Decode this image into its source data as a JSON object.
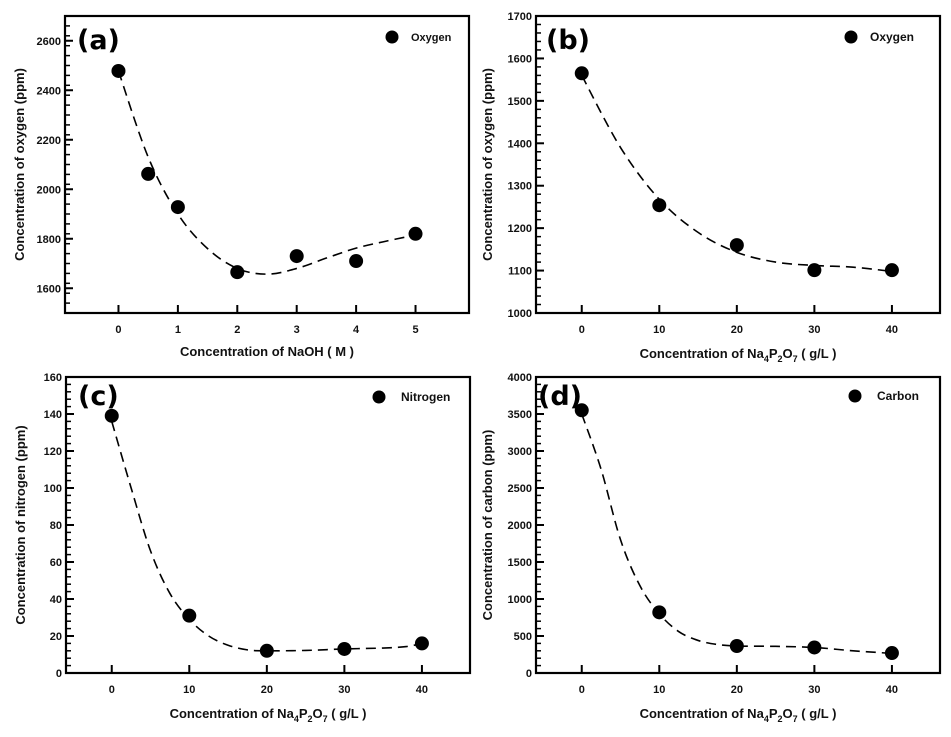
{
  "figure": {
    "background": "#ffffff",
    "marker_color": "#000000",
    "line_color": "#000000"
  },
  "chart_data": [
    {
      "id": "a",
      "type": "scatter",
      "panel_label": "(a)",
      "title": "",
      "xlabel": "Concentration of NaOH ( M )",
      "ylabel": "Concentration of oxygen (ppm)",
      "xlim": [
        -0.9,
        5.9
      ],
      "ylim": [
        1500,
        2700
      ],
      "xticks": [
        0,
        1,
        2,
        3,
        4,
        5
      ],
      "xtick_labels": [
        "0",
        "1",
        "2",
        "3",
        "4",
        "5"
      ],
      "yticks": [
        1600,
        1800,
        2000,
        2200,
        2400,
        2600
      ],
      "ytick_labels": [
        "1600",
        "1800",
        "2000",
        "2200",
        "2400",
        "2600"
      ],
      "yminor_step": 40,
      "grid": false,
      "legend": {
        "position": "top-right",
        "entries": [
          "Oxygen"
        ]
      },
      "series": [
        {
          "name": "Oxygen",
          "x": [
            0,
            0.5,
            1,
            2,
            3,
            4,
            5
          ],
          "y": [
            2478,
            2062,
            1928,
            1665,
            1730,
            1710,
            1820
          ]
        }
      ],
      "fit_curve": {
        "style": "dashed",
        "x": [
          0,
          0.5,
          1,
          1.5,
          2,
          2.5,
          3,
          3.5,
          4,
          4.5,
          5
        ],
        "y": [
          2478,
          2130,
          1900,
          1760,
          1680,
          1657,
          1680,
          1722,
          1762,
          1790,
          1815
        ]
      }
    },
    {
      "id": "b",
      "type": "scatter",
      "panel_label": "(b)",
      "title": "",
      "xlabel": "Concentration of  Na4P2O7  ( g/L )",
      "xlabel_parts": [
        "Concentration of  Na",
        "4",
        "P",
        "2",
        "O",
        "7",
        "   ( g/L )"
      ],
      "ylabel": "Concentration of oxygen  (ppm)",
      "xlim": [
        -5.9,
        46.2
      ],
      "ylim": [
        1000,
        1700
      ],
      "xticks": [
        0,
        10,
        20,
        30,
        40
      ],
      "xtick_labels": [
        "0",
        "10",
        "20",
        "30",
        "40"
      ],
      "yticks": [
        1000,
        1100,
        1200,
        1300,
        1400,
        1500,
        1600,
        1700
      ],
      "ytick_labels": [
        "1000",
        "1100",
        "1200",
        "1300",
        "1400",
        "1500",
        "1600",
        "1700"
      ],
      "yminor_step": 20,
      "grid": false,
      "legend": {
        "position": "top-right",
        "entries": [
          "Oxygen"
        ]
      },
      "series": [
        {
          "name": "Oxygen",
          "x": [
            0,
            10,
            20,
            30,
            40
          ],
          "y": [
            1565,
            1254,
            1160,
            1101,
            1101
          ]
        }
      ],
      "fit_curve": {
        "style": "dashed",
        "x": [
          0,
          5,
          10,
          15,
          20,
          25,
          30,
          35,
          40
        ],
        "y": [
          1560,
          1390,
          1268,
          1190,
          1143,
          1120,
          1112,
          1108,
          1098
        ]
      }
    },
    {
      "id": "c",
      "type": "scatter",
      "panel_label": "(c)",
      "title": "",
      "xlabel": "Concentration of Na4P2O7  ( g/L )",
      "xlabel_parts": [
        "Concentration of Na",
        "4",
        "P",
        "2",
        "O",
        "7",
        "  ( g/L )"
      ],
      "ylabel": "Concentration of nitrogen  (ppm)",
      "xlim": [
        -5.9,
        46.2
      ],
      "ylim": [
        0,
        160
      ],
      "xticks": [
        0,
        10,
        20,
        30,
        40
      ],
      "xtick_labels": [
        "0",
        "10",
        "20",
        "30",
        "40"
      ],
      "yticks": [
        0,
        20,
        40,
        60,
        80,
        100,
        120,
        140,
        160
      ],
      "ytick_labels": [
        "0",
        "20",
        "40",
        "60",
        "80",
        "100",
        "120",
        "140",
        "160"
      ],
      "yminor_step": 4,
      "grid": false,
      "legend": {
        "position": "top-right",
        "entries": [
          "Nitrogen"
        ]
      },
      "series": [
        {
          "name": "Nitrogen",
          "x": [
            0,
            10,
            20,
            30,
            40
          ],
          "y": [
            139,
            31,
            12,
            13,
            16
          ]
        }
      ],
      "fit_curve": {
        "style": "dashed",
        "x": [
          0,
          2.5,
          5,
          7.5,
          10,
          12.5,
          15,
          17.5,
          20,
          25,
          30,
          35,
          38,
          40
        ],
        "y": [
          136,
          100,
          66,
          43,
          29,
          20,
          15,
          12.5,
          12,
          12.2,
          13,
          13.5,
          14.3,
          16
        ]
      }
    },
    {
      "id": "d",
      "type": "scatter",
      "panel_label": "(d)",
      "title": "",
      "xlabel": "Concentration of Na4P2O7  ( g/L )",
      "xlabel_parts": [
        "Concentration of Na",
        "4",
        "P",
        "2",
        "O",
        "7",
        "  ( g/L )"
      ],
      "ylabel": "Concentration of carbon  (ppm)",
      "xlim": [
        -5.9,
        46.2
      ],
      "ylim": [
        0,
        4000
      ],
      "xticks": [
        0,
        10,
        20,
        30,
        40
      ],
      "xtick_labels": [
        "0",
        "10",
        "20",
        "30",
        "40"
      ],
      "yticks": [
        0,
        500,
        1000,
        1500,
        2000,
        2500,
        3000,
        3500,
        4000
      ],
      "ytick_labels": [
        "0",
        "500",
        "1000",
        "1500",
        "2000",
        "2500",
        "3000",
        "3500",
        "4000"
      ],
      "yminor_step": 100,
      "grid": false,
      "legend": {
        "position": "top-right",
        "entries": [
          "Carbon"
        ]
      },
      "series": [
        {
          "name": "Carbon",
          "x": [
            0,
            10,
            20,
            30,
            40
          ],
          "y": [
            3550,
            820,
            365,
            345,
            270
          ]
        }
      ],
      "fit_curve": {
        "style": "dashed",
        "x": [
          0,
          2.5,
          5,
          7.5,
          10,
          12.5,
          15,
          17.5,
          20,
          25,
          30,
          35,
          40
        ],
        "y": [
          3500,
          2750,
          1800,
          1180,
          800,
          560,
          440,
          385,
          365,
          360,
          345,
          300,
          265
        ]
      }
    }
  ]
}
